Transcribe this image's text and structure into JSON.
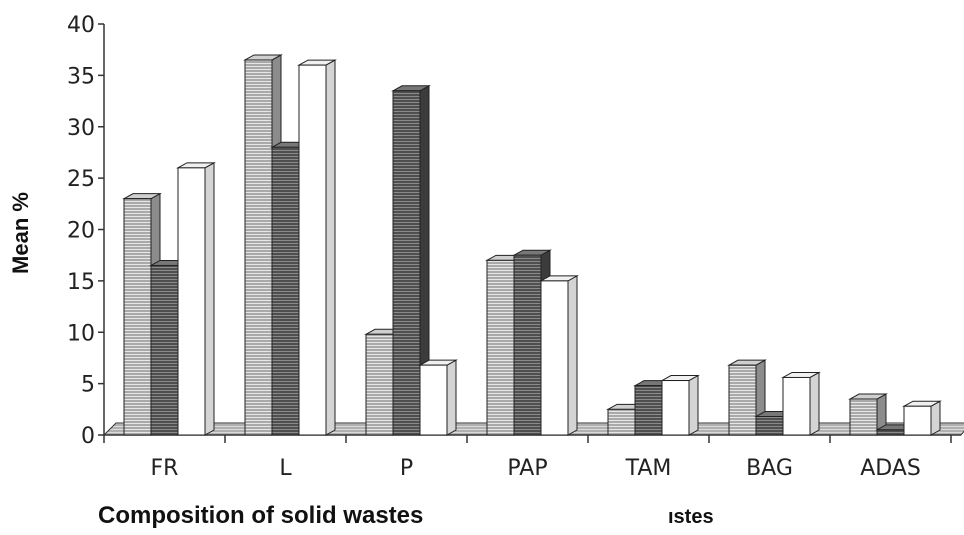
{
  "chart_data": {
    "type": "bar",
    "categories": [
      "FR",
      "L",
      "P",
      "PAP",
      "TAM",
      "BAG",
      "ADAS"
    ],
    "series": [
      {
        "values": [
          23,
          36.5,
          9.8,
          17,
          2.5,
          6.8,
          3.5
        ]
      },
      {
        "values": [
          16.5,
          28,
          33.5,
          17.5,
          4.8,
          1.8,
          0.5
        ]
      },
      {
        "values": [
          26,
          36,
          6.8,
          15,
          5.3,
          5.6,
          2.8
        ]
      }
    ],
    "ylabel": "Mean  %",
    "xlabel": "Composition of solid wastes",
    "xlabel_fragment": "ıstes",
    "ylim": [
      0,
      40
    ],
    "yticks": [
      "0",
      "5",
      "10",
      "15",
      "20",
      "25",
      "30",
      "35",
      "40"
    ],
    "grid": false,
    "legend": "none",
    "colors": [
      "#a6a6a6",
      "#555555",
      "#ffffff"
    ]
  }
}
